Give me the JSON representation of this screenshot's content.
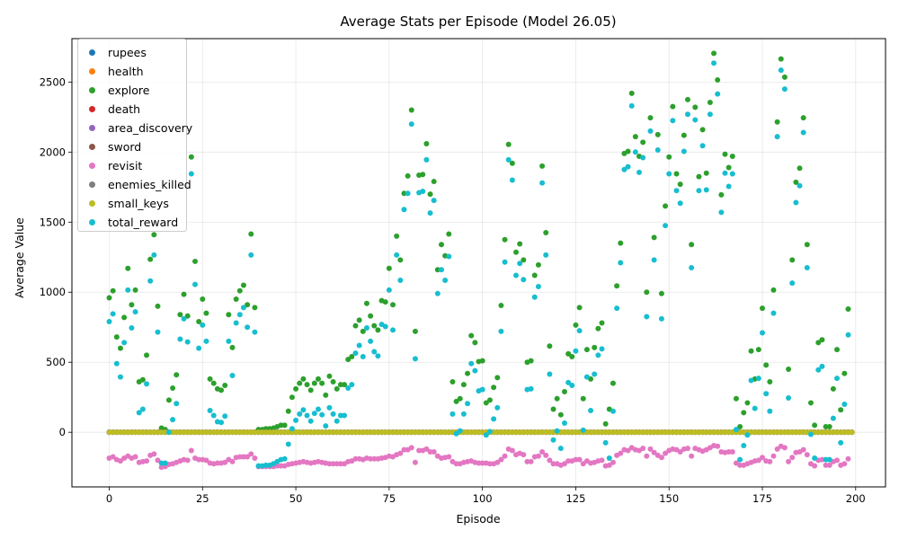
{
  "chart_data": {
    "type": "scatter",
    "title": "Average Stats per Episode (Model 26.05)",
    "xlabel": "Episode",
    "ylabel": "Average Value",
    "xlim": [
      -10,
      208
    ],
    "ylim": [
      -390,
      2810
    ],
    "xticks": [
      0,
      25,
      50,
      75,
      100,
      125,
      150,
      175,
      200
    ],
    "yticks": [
      0,
      500,
      1000,
      1500,
      2000,
      2500
    ],
    "grid": true,
    "legend_position": "top-left",
    "x": "episodes 0 to 199",
    "series": [
      {
        "name": "rupees",
        "color": "#1f77b4",
        "values": "approximately 0 for all episodes"
      },
      {
        "name": "health",
        "color": "#ff7f0e",
        "values": "approximately 0 for all episodes"
      },
      {
        "name": "explore",
        "color": "#2ca02c",
        "values": [
          960,
          1010,
          680,
          600,
          820,
          1170,
          910,
          1015,
          360,
          375,
          550,
          1235,
          1410,
          900,
          30,
          20,
          230,
          315,
          410,
          840,
          985,
          830,
          1965,
          1220,
          790,
          950,
          850,
          380,
          350,
          310,
          300,
          335,
          840,
          605,
          950,
          1010,
          1050,
          910,
          1415,
          890,
          20,
          20,
          25,
          25,
          30,
          40,
          50,
          50,
          150,
          250,
          310,
          350,
          380,
          340,
          300,
          350,
          380,
          350,
          265,
          400,
          360,
          310,
          340,
          340,
          520,
          540,
          760,
          800,
          720,
          920,
          830,
          760,
          730,
          940,
          930,
          1170,
          910,
          1400,
          1230,
          1705,
          1830,
          2300,
          720,
          1835,
          1840,
          2060,
          1700,
          1790,
          1160,
          1340,
          1260,
          1415,
          360,
          220,
          240,
          340,
          420,
          690,
          640,
          505,
          510,
          210,
          230,
          320,
          390,
          905,
          1375,
          2055,
          1920,
          1285,
          1345,
          1230,
          500,
          510,
          1120,
          1195,
          1900,
          1425,
          615,
          165,
          240,
          125,
          290,
          560,
          540,
          765,
          890,
          240,
          590,
          380,
          605,
          740,
          780,
          60,
          165,
          350,
          1045,
          1350,
          1990,
          2005,
          2420,
          2110,
          1970,
          2070,
          1000,
          2245,
          1390,
          2125,
          990,
          1615,
          1965,
          2325,
          1845,
          1770,
          2120,
          2375,
          1340,
          2320,
          1825,
          2160,
          1850,
          2355,
          2705,
          2515,
          1695,
          1985,
          1890,
          1970,
          240,
          40,
          140,
          210,
          580,
          380,
          590,
          885,
          480,
          360,
          1015,
          2215,
          2665,
          2535,
          450,
          1230,
          1785,
          1885,
          2245,
          1340,
          210,
          50,
          640,
          660,
          40,
          40,
          310,
          590,
          160,
          420,
          880
        ]
      },
      {
        "name": "death",
        "color": "#d62728",
        "values": "approximately 0 for all episodes"
      },
      {
        "name": "area_discovery",
        "color": "#9467bd",
        "values": "approximately 0 for all episodes"
      },
      {
        "name": "sword",
        "color": "#8c564b",
        "values": "approximately 0 for all episodes"
      },
      {
        "name": "revisit",
        "color": "#e377c2",
        "values": [
          -185,
          -175,
          -195,
          -205,
          -185,
          -170,
          -185,
          -175,
          -215,
          -210,
          -205,
          -165,
          -155,
          -200,
          -250,
          -245,
          -230,
          -225,
          -215,
          -205,
          -195,
          -200,
          -130,
          -185,
          -195,
          -195,
          -200,
          -220,
          -225,
          -220,
          -220,
          -215,
          -195,
          -210,
          -180,
          -175,
          -175,
          -175,
          -155,
          -185,
          -245,
          -245,
          -245,
          -245,
          -245,
          -240,
          -240,
          -240,
          -230,
          -225,
          -220,
          -215,
          -210,
          -215,
          -220,
          -215,
          -210,
          -215,
          -220,
          -225,
          -225,
          -225,
          -225,
          -225,
          -210,
          -205,
          -190,
          -190,
          -195,
          -185,
          -190,
          -190,
          -190,
          -185,
          -180,
          -170,
          -175,
          -160,
          -150,
          -125,
          -125,
          -110,
          -215,
          -130,
          -130,
          -120,
          -140,
          -140,
          -170,
          -185,
          -180,
          -175,
          -210,
          -225,
          -225,
          -215,
          -210,
          -205,
          -215,
          -220,
          -220,
          -220,
          -225,
          -225,
          -215,
          -195,
          -170,
          -120,
          -130,
          -160,
          -150,
          -160,
          -210,
          -210,
          -175,
          -170,
          -140,
          -165,
          -200,
          -225,
          -225,
          -235,
          -225,
          -205,
          -205,
          -195,
          -195,
          -225,
          -205,
          -220,
          -215,
          -205,
          -200,
          -240,
          -235,
          -215,
          -165,
          -150,
          -125,
          -130,
          -110,
          -125,
          -130,
          -115,
          -170,
          -120,
          -145,
          -165,
          -180,
          -150,
          -130,
          -120,
          -125,
          -140,
          -120,
          -115,
          -170,
          -115,
          -125,
          -135,
          -125,
          -110,
          -95,
          -100,
          -140,
          -145,
          -140,
          -140,
          -220,
          -235,
          -235,
          -225,
          -215,
          -205,
          -200,
          -180,
          -205,
          -210,
          -170,
          -120,
          -100,
          -110,
          -210,
          -180,
          -145,
          -140,
          -125,
          -160,
          -225,
          -240,
          -200,
          -195,
          -235,
          -235,
          -210,
          -200,
          -235,
          -225,
          -190
        ]
      },
      {
        "name": "enemies_killed",
        "color": "#7f7f7f",
        "values": "approximately 0 for all episodes"
      },
      {
        "name": "small_keys",
        "color": "#bcbd22",
        "values": "approximately 0 for all episodes"
      },
      {
        "name": "total_reward",
        "color": "#17becf",
        "values": [
          790,
          845,
          490,
          395,
          640,
          1015,
          745,
          860,
          140,
          165,
          345,
          1080,
          1265,
          715,
          -220,
          -220,
          0,
          90,
          205,
          665,
          810,
          645,
          1845,
          1055,
          600,
          765,
          650,
          155,
          120,
          75,
          70,
          115,
          650,
          405,
          780,
          840,
          890,
          750,
          1265,
          715,
          -240,
          -240,
          -235,
          -235,
          -225,
          -210,
          -195,
          -190,
          -85,
          25,
          85,
          130,
          160,
          120,
          80,
          135,
          165,
          125,
          45,
          175,
          130,
          80,
          120,
          120,
          315,
          340,
          565,
          620,
          540,
          745,
          650,
          575,
          545,
          770,
          755,
          1015,
          730,
          1265,
          1085,
          1590,
          1705,
          2200,
          525,
          1710,
          1720,
          1945,
          1565,
          1655,
          990,
          1160,
          1085,
          1255,
          130,
          -10,
          10,
          130,
          205,
          490,
          440,
          295,
          305,
          -20,
          5,
          95,
          175,
          720,
          1215,
          1945,
          1800,
          1120,
          1205,
          1090,
          305,
          310,
          965,
          1040,
          1780,
          1265,
          415,
          -55,
          10,
          -115,
          65,
          355,
          335,
          580,
          725,
          15,
          395,
          155,
          415,
          550,
          595,
          -75,
          -185,
          150,
          885,
          1210,
          1875,
          1895,
          2330,
          2000,
          1855,
          1960,
          825,
          2150,
          1230,
          2015,
          810,
          1475,
          1845,
          2225,
          1725,
          1635,
          2005,
          2270,
          1175,
          2230,
          1725,
          2045,
          1730,
          2270,
          2635,
          2415,
          1570,
          1850,
          1755,
          1845,
          20,
          -195,
          -95,
          -20,
          370,
          170,
          385,
          710,
          275,
          150,
          850,
          2110,
          2585,
          2450,
          245,
          1065,
          1640,
          1760,
          2140,
          1175,
          -15,
          -185,
          445,
          470,
          -195,
          -195,
          100,
          385,
          -75,
          200,
          695
        ]
      }
    ]
  }
}
